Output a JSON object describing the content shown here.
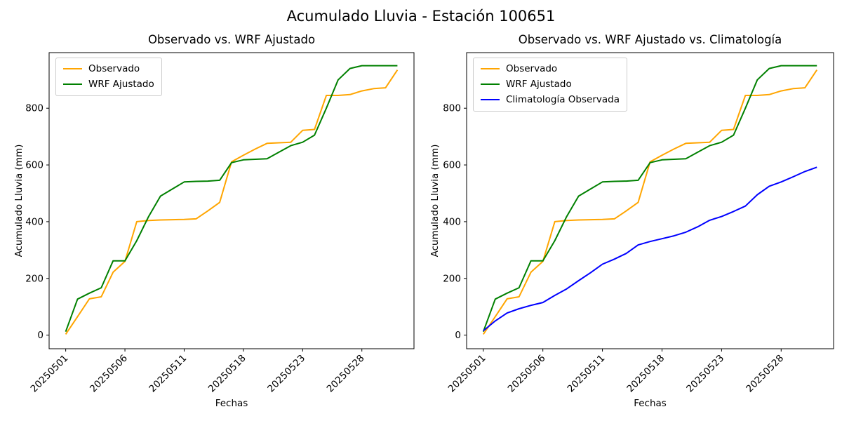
{
  "figure": {
    "suptitle": "Acumulado Lluvia - Estación 100651",
    "background": "#ffffff"
  },
  "colors": {
    "observado": "#FFA500",
    "wrf_ajustado": "#008000",
    "climatologia": "#0000FF",
    "axis": "#000000",
    "legend_border": "#cccccc"
  },
  "axes": {
    "ylabel": "Acumulado Lluvia (mm)",
    "xlabel": "Fechas",
    "yticks": [
      0,
      200,
      400,
      600,
      800
    ],
    "xtick_positions": [
      0,
      5,
      10,
      15,
      20,
      25
    ],
    "xtick_labels": [
      "20250501",
      "20250506",
      "20250511",
      "20250518",
      "20250523",
      "20250528"
    ],
    "ylim": [
      -48,
      996
    ],
    "xlim": [
      -1.4,
      29.4
    ],
    "tick_rotation_deg": 45,
    "grid": false
  },
  "left_plot": {
    "title": "Observado vs. WRF Ajustado",
    "legend_position": "upper-left"
  },
  "right_plot": {
    "title": "Observado vs. WRF Ajustado vs. Climatología",
    "legend_position": "upper-left"
  },
  "chart_data": [
    {
      "type": "line",
      "title": "Observado vs. WRF Ajustado",
      "xlabel": "Fechas",
      "ylabel": "Acumulado Lluvia (mm)",
      "x": [
        "20250501",
        "20250502",
        "20250503",
        "20250504",
        "20250505",
        "20250506",
        "20250507",
        "20250508",
        "20250509",
        "20250510",
        "20250511",
        "20250512",
        "20250513",
        "20250514",
        "20250517",
        "20250518",
        "20250519",
        "20250520",
        "20250521",
        "20250522",
        "20250523",
        "20250524",
        "20250525",
        "20250526",
        "20250527",
        "20250528",
        "20250529",
        "20250530",
        "20250531"
      ],
      "series": [
        {
          "name": "Observado",
          "color": "#FFA500",
          "values": [
            3,
            65,
            128,
            135,
            222,
            260,
            400,
            404,
            406,
            407,
            408,
            410,
            438,
            468,
            611,
            634,
            656,
            676,
            678,
            680,
            722,
            725,
            845,
            845,
            848,
            861,
            869,
            872,
            935
          ]
        },
        {
          "name": "WRF Ajustado",
          "color": "#008000",
          "values": [
            12,
            127,
            148,
            167,
            262,
            262,
            333,
            418,
            490,
            515,
            540,
            542,
            543,
            546,
            608,
            618,
            620,
            622,
            645,
            668,
            680,
            705,
            800,
            900,
            940,
            950,
            950,
            950,
            950
          ]
        }
      ]
    },
    {
      "type": "line",
      "title": "Observado vs. WRF Ajustado vs. Climatología",
      "xlabel": "Fechas",
      "ylabel": "Acumulado Lluvia (mm)",
      "x": [
        "20250501",
        "20250502",
        "20250503",
        "20250504",
        "20250505",
        "20250506",
        "20250507",
        "20250508",
        "20250509",
        "20250510",
        "20250511",
        "20250512",
        "20250513",
        "20250514",
        "20250517",
        "20250518",
        "20250519",
        "20250520",
        "20250521",
        "20250522",
        "20250523",
        "20250524",
        "20250525",
        "20250526",
        "20250527",
        "20250528",
        "20250529",
        "20250530",
        "20250531"
      ],
      "series": [
        {
          "name": "Observado",
          "color": "#FFA500",
          "values": [
            3,
            65,
            128,
            135,
            222,
            260,
            400,
            404,
            406,
            407,
            408,
            410,
            438,
            468,
            611,
            634,
            656,
            676,
            678,
            680,
            722,
            725,
            845,
            845,
            848,
            861,
            869,
            872,
            935
          ]
        },
        {
          "name": "WRF Ajustado",
          "color": "#008000",
          "values": [
            12,
            127,
            148,
            167,
            262,
            262,
            333,
            418,
            490,
            515,
            540,
            542,
            543,
            546,
            608,
            618,
            620,
            622,
            645,
            668,
            680,
            705,
            800,
            900,
            940,
            950,
            950,
            950,
            950
          ]
        },
        {
          "name": "Climatología Observada",
          "color": "#0000FF",
          "values": [
            15,
            50,
            78,
            93,
            105,
            115,
            140,
            163,
            192,
            220,
            250,
            268,
            288,
            318,
            330,
            340,
            350,
            363,
            382,
            405,
            418,
            436,
            455,
            495,
            525,
            540,
            558,
            577,
            592
          ]
        }
      ]
    }
  ]
}
